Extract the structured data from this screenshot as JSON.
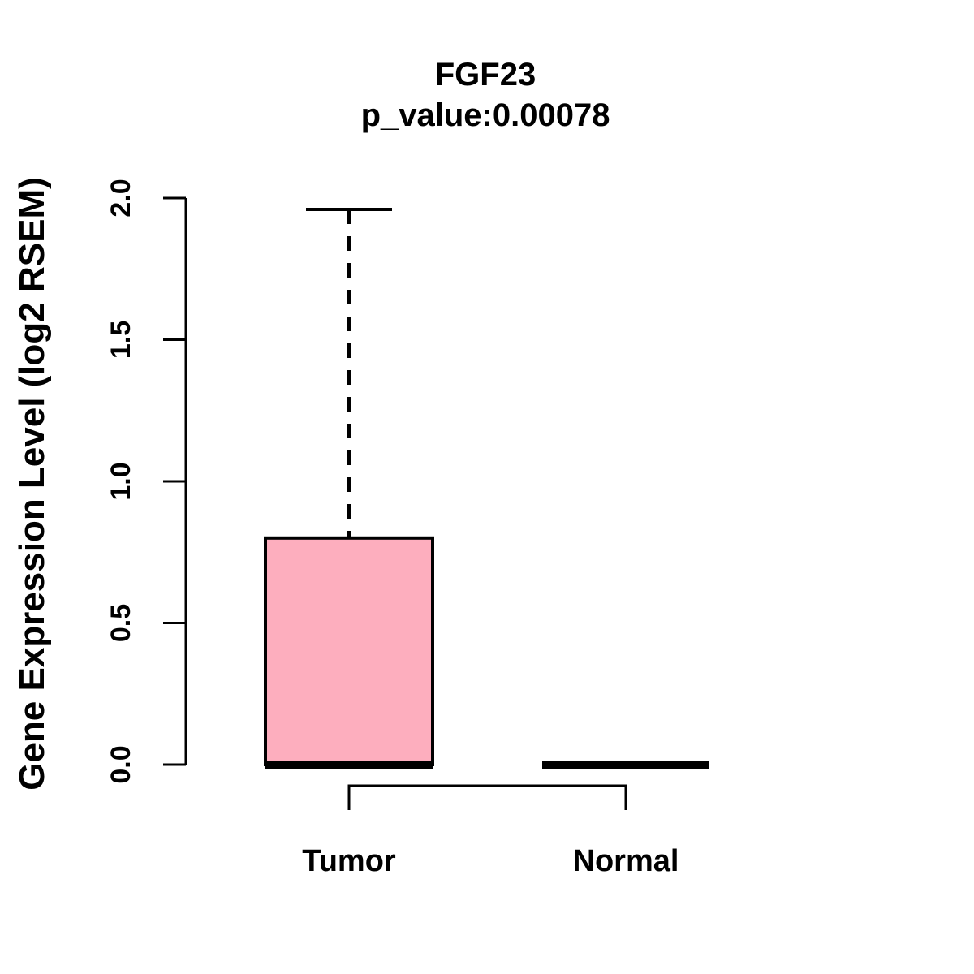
{
  "header": {
    "title": "FGF23",
    "subtitle": "p_value:0.00078"
  },
  "axes": {
    "ylabel": "Gene Expression Level (log2 RSEM)",
    "ytick_labels": [
      "0.0",
      "0.5",
      "1.0",
      "1.5",
      "2.0"
    ]
  },
  "chart_data": {
    "type": "boxplot",
    "title": "FGF23",
    "subtitle": "p_value:0.00078",
    "ylabel": "Gene Expression Level (log2 RSEM)",
    "xlabel": "",
    "categories": [
      "Tumor",
      "Normal"
    ],
    "ylim": [
      0.0,
      2.0
    ],
    "yticks": [
      0.0,
      0.5,
      1.0,
      1.5,
      2.0
    ],
    "grid": false,
    "legend": "none",
    "series": [
      {
        "name": "Tumor",
        "median": 0.0,
        "q1": 0.0,
        "q3": 0.8,
        "whisker_low": 0.0,
        "whisker_high": 1.96,
        "box_fill": "#FDAEBE"
      },
      {
        "name": "Normal",
        "median": 0.0,
        "q1": 0.0,
        "q3": 0.0,
        "whisker_low": 0.0,
        "whisker_high": 0.0,
        "box_fill": "#FDAEBE"
      }
    ],
    "comparison_bracket": {
      "from": "Tumor",
      "to": "Normal"
    },
    "colors": {
      "box_fill": "#FDAEBE",
      "line": "#000000",
      "background": "#FFFFFF"
    }
  }
}
